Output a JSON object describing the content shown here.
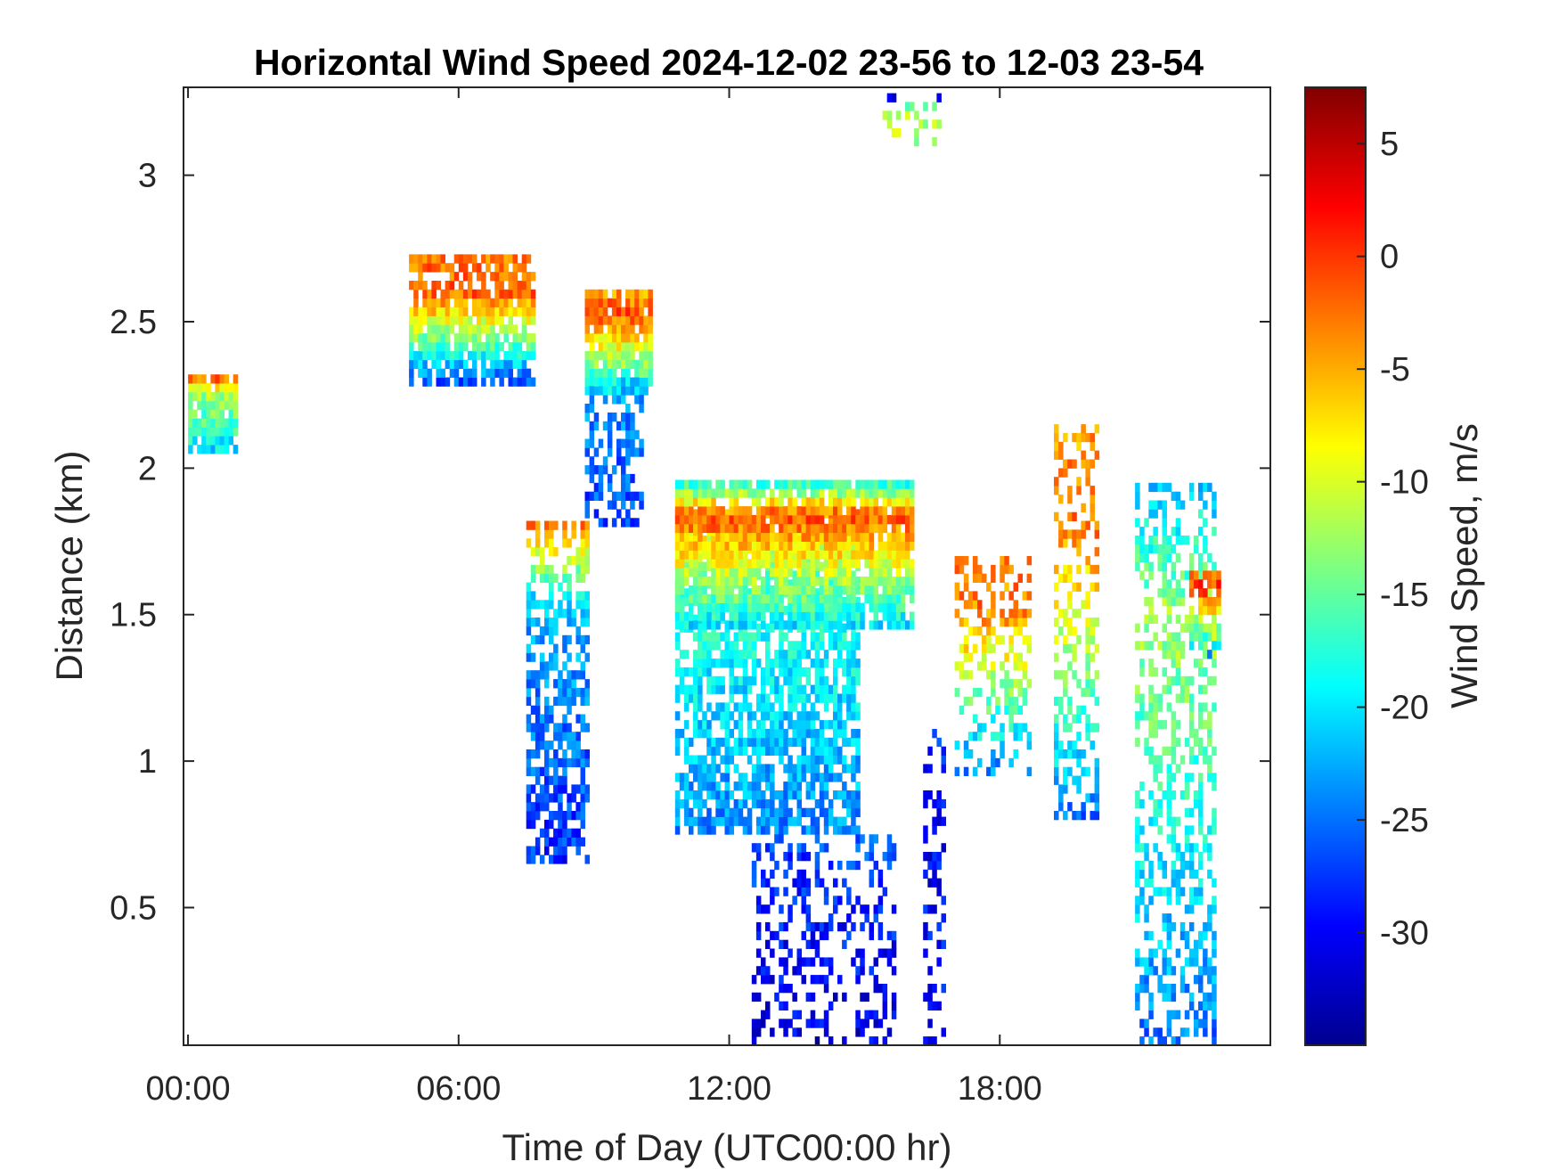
{
  "chart_data": {
    "type": "heatmap",
    "title": "Horizontal Wind Speed 2024-12-02 23-56 to 12-03 23-54",
    "xlabel": "Time of Day (UTC00:00 hr)",
    "ylabel": "Distance (km)",
    "xlim_hours": [
      -0.1,
      24.0
    ],
    "ylim_km": [
      0.03,
      3.3
    ],
    "x_ticks": [
      {
        "value": 0,
        "label": "00:00"
      },
      {
        "value": 6,
        "label": "06:00"
      },
      {
        "value": 12,
        "label": "12:00"
      },
      {
        "value": 18,
        "label": "18:00"
      }
    ],
    "y_ticks": [
      {
        "value": 0.5,
        "label": "0.5"
      },
      {
        "value": 1,
        "label": "1"
      },
      {
        "value": 1.5,
        "label": "1.5"
      },
      {
        "value": 2,
        "label": "2"
      },
      {
        "value": 2.5,
        "label": "2.5"
      },
      {
        "value": 3,
        "label": "3"
      }
    ],
    "grid": false,
    "colorbar": {
      "label": "Wind Speed, m/s",
      "colormap": "jet",
      "clim": [
        -35,
        7.5
      ],
      "ticks": [
        {
          "value": 5,
          "label": "5"
        },
        {
          "value": 0,
          "label": "0"
        },
        {
          "value": -5,
          "label": "-5"
        },
        {
          "value": -10,
          "label": "-10"
        },
        {
          "value": -15,
          "label": "-15"
        },
        {
          "value": -20,
          "label": "-20"
        },
        {
          "value": -25,
          "label": "-25"
        },
        {
          "value": -30,
          "label": "-30"
        }
      ]
    },
    "regions": [
      {
        "name": "early-echo",
        "t": [
          0.0,
          1.0
        ],
        "z": [
          2.05,
          2.3
        ],
        "top_value": -1,
        "core_value": -12,
        "base_value": -20,
        "density": 0.85
      },
      {
        "name": "cloud-1-top",
        "t": [
          4.9,
          7.6
        ],
        "z": [
          2.28,
          2.7
        ],
        "top_value": -3,
        "core_value": -1,
        "base_value": -26,
        "density": 0.8
      },
      {
        "name": "cloud-2-top",
        "t": [
          8.8,
          10.2
        ],
        "z": [
          2.25,
          2.6
        ],
        "top_value": -5,
        "core_value": -1,
        "base_value": -20,
        "density": 0.9
      },
      {
        "name": "cloud-2-virga",
        "t": [
          8.8,
          10.0
        ],
        "z": [
          1.8,
          2.3
        ],
        "top_value": -20,
        "core_value": -24,
        "base_value": -27,
        "density": 0.55
      },
      {
        "name": "shaft-1",
        "t": [
          7.5,
          8.8
        ],
        "z": [
          0.65,
          1.8
        ],
        "top_value": -3,
        "core_value": -22,
        "base_value": -28,
        "density": 0.6
      },
      {
        "name": "shaft-2-mid",
        "t": [
          10.8,
          14.8
        ],
        "z": [
          0.75,
          1.85
        ],
        "top_value": -3,
        "core_value": -17,
        "base_value": -24,
        "density": 0.7
      },
      {
        "name": "layer-top-2",
        "t": [
          10.8,
          16.0
        ],
        "z": [
          1.45,
          1.95
        ],
        "top_value": -20,
        "core_value": -1,
        "base_value": -20,
        "density": 0.85
      },
      {
        "name": "lower-plume",
        "t": [
          12.5,
          15.6
        ],
        "z": [
          0.03,
          0.75
        ],
        "top_value": -26,
        "core_value": -28,
        "base_value": -31,
        "density": 0.35
      },
      {
        "name": "column-16",
        "t": [
          16.3,
          16.8
        ],
        "z": [
          0.03,
          1.1
        ],
        "top_value": -27,
        "core_value": -30,
        "base_value": -29,
        "density": 0.4
      },
      {
        "name": "late-cell-1",
        "t": [
          17.0,
          18.7
        ],
        "z": [
          0.95,
          1.7
        ],
        "top_value": -4,
        "core_value": -3,
        "base_value": -24,
        "density": 0.4
      },
      {
        "name": "late-cell-2",
        "t": [
          19.2,
          20.2
        ],
        "z": [
          0.8,
          2.15
        ],
        "top_value": -5,
        "core_value": -2,
        "base_value": -25,
        "density": 0.45
      },
      {
        "name": "late-cell-3",
        "t": [
          21.0,
          22.8
        ],
        "z": [
          0.03,
          1.95
        ],
        "top_value": -22,
        "core_value": -12,
        "base_value": -25,
        "density": 0.45
      },
      {
        "name": "late-top",
        "t": [
          22.2,
          22.9
        ],
        "z": [
          1.35,
          1.65
        ],
        "top_value": -4,
        "core_value": 0,
        "base_value": -22,
        "density": 0.6
      },
      {
        "name": "isolated-high",
        "t": [
          15.4,
          16.7
        ],
        "z": [
          3.1,
          3.25
        ],
        "top_value": -30,
        "core_value": -12,
        "base_value": -12,
        "density": 0.25
      }
    ]
  }
}
